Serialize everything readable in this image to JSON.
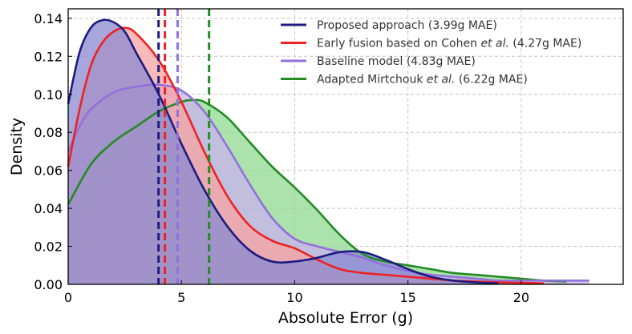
{
  "chart_data": {
    "type": "area",
    "title": "",
    "xlabel": "Absolute Error (g)",
    "ylabel": "Density",
    "xlim": [
      0,
      24.5
    ],
    "ylim": [
      0,
      0.145
    ],
    "xticks": [
      0,
      5,
      10,
      15,
      20
    ],
    "yticks": [
      0.0,
      0.02,
      0.04,
      0.06,
      0.08,
      0.1,
      0.12,
      0.14
    ],
    "ytick_labels": [
      "0.00",
      "0.02",
      "0.04",
      "0.06",
      "0.08",
      "0.10",
      "0.12",
      "0.14"
    ],
    "grid": true,
    "legend_position": "top-right",
    "series": [
      {
        "name": "Adapted Mirtchouk et al. (6.22g MAE)",
        "legend_prefix": "Adapted Mirtchouk ",
        "legend_italic": "et al.",
        "legend_suffix": "  (6.22g MAE)",
        "color": "#228b22",
        "fill": "#90d890",
        "mae": 6.22,
        "x": [
          0,
          1,
          2,
          3,
          4,
          5,
          5.5,
          6,
          7,
          8,
          9,
          10,
          11,
          12,
          13,
          14,
          15,
          16,
          17,
          18,
          19,
          20,
          21,
          22
        ],
        "y": [
          0.042,
          0.063,
          0.075,
          0.083,
          0.091,
          0.096,
          0.097,
          0.096,
          0.088,
          0.075,
          0.062,
          0.051,
          0.039,
          0.026,
          0.016,
          0.012,
          0.01,
          0.008,
          0.006,
          0.005,
          0.004,
          0.003,
          0.002,
          0.0015
        ]
      },
      {
        "name": "Baseline model (4.83g MAE)",
        "legend_prefix": "Baseline model (4.83g MAE)",
        "legend_italic": "",
        "legend_suffix": "",
        "color": "#9370db",
        "fill": "#c8b3ee",
        "mae": 4.83,
        "x": [
          0,
          0.5,
          1,
          2,
          3,
          4,
          5,
          6,
          7,
          8,
          9,
          10,
          11,
          12,
          13,
          14,
          15,
          16,
          17,
          18,
          19,
          20,
          21,
          22,
          23
        ],
        "y": [
          0.07,
          0.083,
          0.092,
          0.101,
          0.104,
          0.105,
          0.102,
          0.091,
          0.073,
          0.053,
          0.035,
          0.024,
          0.02,
          0.017,
          0.014,
          0.01,
          0.007,
          0.005,
          0.004,
          0.003,
          0.002,
          0.002,
          0.002,
          0.002,
          0.002
        ]
      },
      {
        "name": "Early fusion based on Cohen et al. (4.27g MAE)",
        "legend_prefix": "Early fusion based on Cohen ",
        "legend_italic": "et al.",
        "legend_suffix": "  (4.27g MAE)",
        "color": "#ee2222",
        "fill": "#f7a3a3",
        "mae": 4.27,
        "x": [
          0,
          0.5,
          1,
          1.5,
          2,
          2.5,
          3,
          4,
          5,
          6,
          7,
          8,
          9,
          10,
          11,
          12,
          13,
          14,
          15,
          16,
          17,
          18,
          19,
          20,
          21
        ],
        "y": [
          0.062,
          0.092,
          0.115,
          0.127,
          0.133,
          0.135,
          0.132,
          0.118,
          0.096,
          0.07,
          0.047,
          0.031,
          0.023,
          0.019,
          0.013,
          0.008,
          0.006,
          0.005,
          0.004,
          0.003,
          0.002,
          0.0015,
          0.001,
          0.0008,
          0.0005
        ]
      },
      {
        "name": "Proposed approach (3.99g MAE)",
        "legend_prefix": "Proposed approach (3.99g MAE)",
        "legend_italic": "",
        "legend_suffix": "",
        "color": "#1c1c80",
        "fill": "#8a8ad2",
        "mae": 3.99,
        "x": [
          0,
          0.5,
          1,
          1.5,
          2,
          2.5,
          3,
          4,
          5,
          6,
          7,
          8,
          9,
          10,
          11,
          12,
          13,
          14,
          15,
          16,
          17,
          18,
          19
        ],
        "y": [
          0.095,
          0.122,
          0.135,
          0.139,
          0.138,
          0.133,
          0.122,
          0.1,
          0.074,
          0.05,
          0.031,
          0.018,
          0.012,
          0.012,
          0.014,
          0.017,
          0.017,
          0.013,
          0.008,
          0.004,
          0.002,
          0.001,
          0.0005
        ]
      }
    ],
    "legend_order": [
      3,
      2,
      1,
      0
    ]
  }
}
